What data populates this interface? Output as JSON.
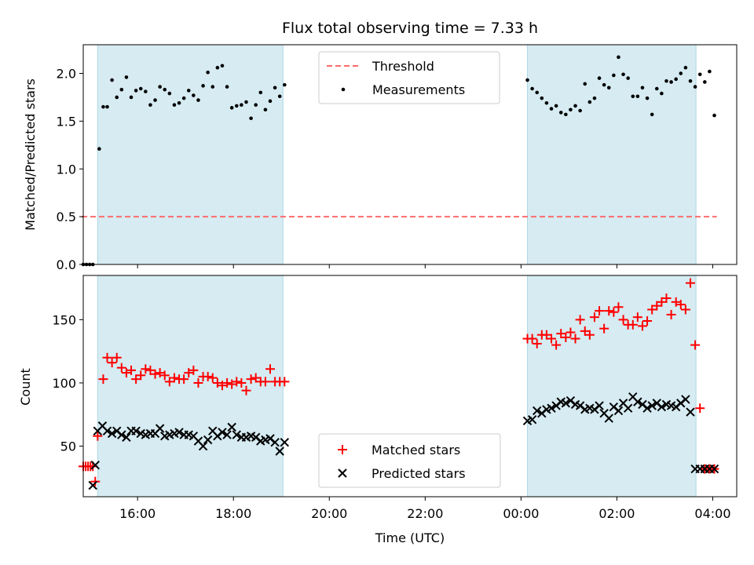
{
  "chart_data": {
    "title": "Flux total observing time = 7.33 h",
    "xlabel": "Time (UTC)",
    "colors": {
      "shade": "#add8e6",
      "threshold": "#ff6b6b",
      "measurements": "#000000",
      "matched": "#ff0000",
      "predicted": "#000000"
    },
    "x_range": [
      "14:52",
      "04:30"
    ],
    "x_ticks": [
      "16:00",
      "18:00",
      "20:00",
      "22:00",
      "00:00",
      "02:00",
      "04:00"
    ],
    "shaded_intervals": [
      [
        "15:10",
        "19:02"
      ],
      [
        "00:08",
        "03:39"
      ]
    ],
    "panels": [
      {
        "type": "scatter",
        "ylabel": "Matched/Predicted stars",
        "ylim": [
          0,
          2.3
        ],
        "y_ticks": [
          "0.0",
          "0.5",
          "1.0",
          "1.5",
          "2.0"
        ],
        "legend_position": "upper center",
        "threshold": {
          "name": "Threshold",
          "value": 0.5,
          "x_start": "14:50",
          "x_end": "04:05"
        },
        "series": [
          {
            "name": "Measurements",
            "marker": "dot",
            "x": [
              "14:52",
              "14:56",
              "15:00",
              "15:04",
              "15:12",
              "15:17",
              "15:22",
              "15:28",
              "15:34",
              "15:40",
              "15:46",
              "15:52",
              "15:58",
              "16:04",
              "16:10",
              "16:16",
              "16:22",
              "16:28",
              "16:34",
              "16:40",
              "16:46",
              "16:52",
              "16:58",
              "17:04",
              "17:10",
              "17:16",
              "17:22",
              "17:28",
              "17:34",
              "17:40",
              "17:46",
              "17:52",
              "17:58",
              "18:04",
              "18:10",
              "18:16",
              "18:22",
              "18:28",
              "18:34",
              "18:40",
              "18:46",
              "18:52",
              "18:58",
              "19:04",
              "00:08",
              "00:14",
              "00:20",
              "00:26",
              "00:32",
              "00:38",
              "00:44",
              "00:50",
              "00:56",
              "01:02",
              "01:08",
              "01:14",
              "01:20",
              "01:26",
              "01:32",
              "01:38",
              "01:44",
              "01:50",
              "01:56",
              "02:02",
              "02:08",
              "02:14",
              "02:20",
              "02:26",
              "02:32",
              "02:38",
              "02:44",
              "02:50",
              "02:56",
              "03:02",
              "03:08",
              "03:14",
              "03:20",
              "03:26",
              "03:32",
              "03:38",
              "03:44",
              "03:50",
              "03:56",
              "04:02"
            ],
            "y": [
              0,
              0,
              0,
              0,
              1.21,
              1.65,
              1.65,
              1.93,
              1.75,
              1.83,
              1.96,
              1.75,
              1.82,
              1.84,
              1.81,
              1.67,
              1.72,
              1.86,
              1.83,
              1.79,
              1.67,
              1.69,
              1.74,
              1.82,
              1.77,
              1.72,
              1.87,
              2.01,
              1.86,
              2.06,
              2.08,
              1.86,
              1.64,
              1.66,
              1.67,
              1.7,
              1.53,
              1.67,
              1.8,
              1.62,
              1.71,
              1.85,
              1.76,
              1.88,
              1.93,
              1.84,
              1.8,
              1.74,
              1.69,
              1.63,
              1.66,
              1.59,
              1.57,
              1.62,
              1.66,
              1.61,
              1.89,
              1.7,
              1.74,
              1.95,
              1.88,
              1.85,
              1.98,
              2.17,
              1.99,
              1.95,
              1.76,
              1.76,
              1.85,
              1.74,
              1.57,
              1.84,
              1.79,
              1.92,
              1.91,
              1.94,
              2.0,
              2.06,
              1.92,
              1.86,
              1.99,
              1.91,
              2.02,
              1.56
            ]
          }
        ]
      },
      {
        "type": "scatter",
        "ylabel": "Count",
        "ylim": [
          10,
          185
        ],
        "y_ticks": [
          "50",
          "100",
          "150"
        ],
        "legend_position": "lower center",
        "series": [
          {
            "name": "Matched stars",
            "marker": "plus",
            "x": [
              "14:52",
              "14:55",
              "14:58",
              "15:01",
              "15:04",
              "15:07",
              "15:10",
              "15:17",
              "15:22",
              "15:28",
              "15:34",
              "15:40",
              "15:46",
              "15:52",
              "15:58",
              "16:04",
              "16:10",
              "16:16",
              "16:22",
              "16:28",
              "16:34",
              "16:40",
              "16:46",
              "16:52",
              "16:58",
              "17:04",
              "17:10",
              "17:16",
              "17:22",
              "17:28",
              "17:34",
              "17:40",
              "17:46",
              "17:52",
              "17:58",
              "18:04",
              "18:10",
              "18:16",
              "18:22",
              "18:28",
              "18:34",
              "18:40",
              "18:46",
              "18:52",
              "18:58",
              "19:04",
              "00:08",
              "00:14",
              "00:20",
              "00:26",
              "00:32",
              "00:38",
              "00:44",
              "00:50",
              "00:56",
              "01:02",
              "01:08",
              "01:14",
              "01:20",
              "01:26",
              "01:32",
              "01:38",
              "01:44",
              "01:50",
              "01:56",
              "02:02",
              "02:08",
              "02:14",
              "02:20",
              "02:26",
              "02:32",
              "02:38",
              "02:44",
              "02:50",
              "02:56",
              "03:02",
              "03:08",
              "03:14",
              "03:20",
              "03:26",
              "03:32",
              "03:38",
              "03:44",
              "03:50",
              "03:56",
              "04:02"
            ],
            "y": [
              34,
              34,
              34,
              34,
              34,
              22,
              58,
              103,
              120,
              116,
              120,
              112,
              108,
              110,
              103,
              106,
              111,
              110,
              107,
              108,
              106,
              101,
              104,
              103,
              103,
              108,
              110,
              100,
              105,
              105,
              104,
              100,
              98,
              100,
              99,
              101,
              100,
              94,
              103,
              104,
              101,
              101,
              111,
              101,
              101,
              101,
              135,
              135,
              131,
              138,
              138,
              135,
              130,
              139,
              136,
              140,
              135,
              150,
              141,
              138,
              152,
              157,
              143,
              157,
              156,
              160,
              150,
              146,
              146,
              152,
              145,
              149,
              158,
              161,
              164,
              167,
              154,
              164,
              162,
              158,
              179,
              130,
              80,
              32,
              32,
              32
            ]
          },
          {
            "name": "Predicted stars",
            "marker": "x",
            "x": [
              "15:04",
              "15:07",
              "15:10",
              "15:16",
              "15:22",
              "15:28",
              "15:34",
              "15:40",
              "15:46",
              "15:52",
              "15:58",
              "16:04",
              "16:10",
              "16:16",
              "16:22",
              "16:28",
              "16:34",
              "16:40",
              "16:46",
              "16:52",
              "16:58",
              "17:04",
              "17:10",
              "17:16",
              "17:22",
              "17:28",
              "17:34",
              "17:40",
              "17:46",
              "17:52",
              "17:58",
              "18:04",
              "18:10",
              "18:16",
              "18:22",
              "18:28",
              "18:34",
              "18:40",
              "18:46",
              "18:52",
              "18:58",
              "19:04",
              "00:08",
              "00:14",
              "00:20",
              "00:26",
              "00:32",
              "00:38",
              "00:44",
              "00:50",
              "00:56",
              "01:02",
              "01:08",
              "01:14",
              "01:20",
              "01:26",
              "01:32",
              "01:38",
              "01:44",
              "01:50",
              "01:56",
              "02:02",
              "02:08",
              "02:14",
              "02:20",
              "02:26",
              "02:32",
              "02:38",
              "02:44",
              "02:50",
              "02:56",
              "03:02",
              "03:08",
              "03:14",
              "03:20",
              "03:26",
              "03:32",
              "03:38",
              "03:44",
              "03:50",
              "03:56",
              "04:02"
            ],
            "y": [
              19,
              35,
              62,
              66,
              62,
              60,
              62,
              59,
              57,
              62,
              62,
              60,
              59,
              60,
              60,
              64,
              58,
              59,
              60,
              61,
              59,
              59,
              58,
              54,
              50,
              55,
              62,
              58,
              61,
              59,
              65,
              59,
              57,
              57,
              58,
              57,
              54,
              55,
              56,
              53,
              46,
              53,
              70,
              71,
              78,
              76,
              79,
              80,
              82,
              85,
              84,
              86,
              83,
              82,
              79,
              80,
              79,
              82,
              76,
              72,
              81,
              78,
              84,
              80,
              89,
              85,
              83,
              80,
              82,
              84,
              81,
              83,
              82,
              81,
              84,
              87,
              77,
              32,
              32,
              32,
              32,
              32
            ]
          }
        ]
      }
    ]
  }
}
